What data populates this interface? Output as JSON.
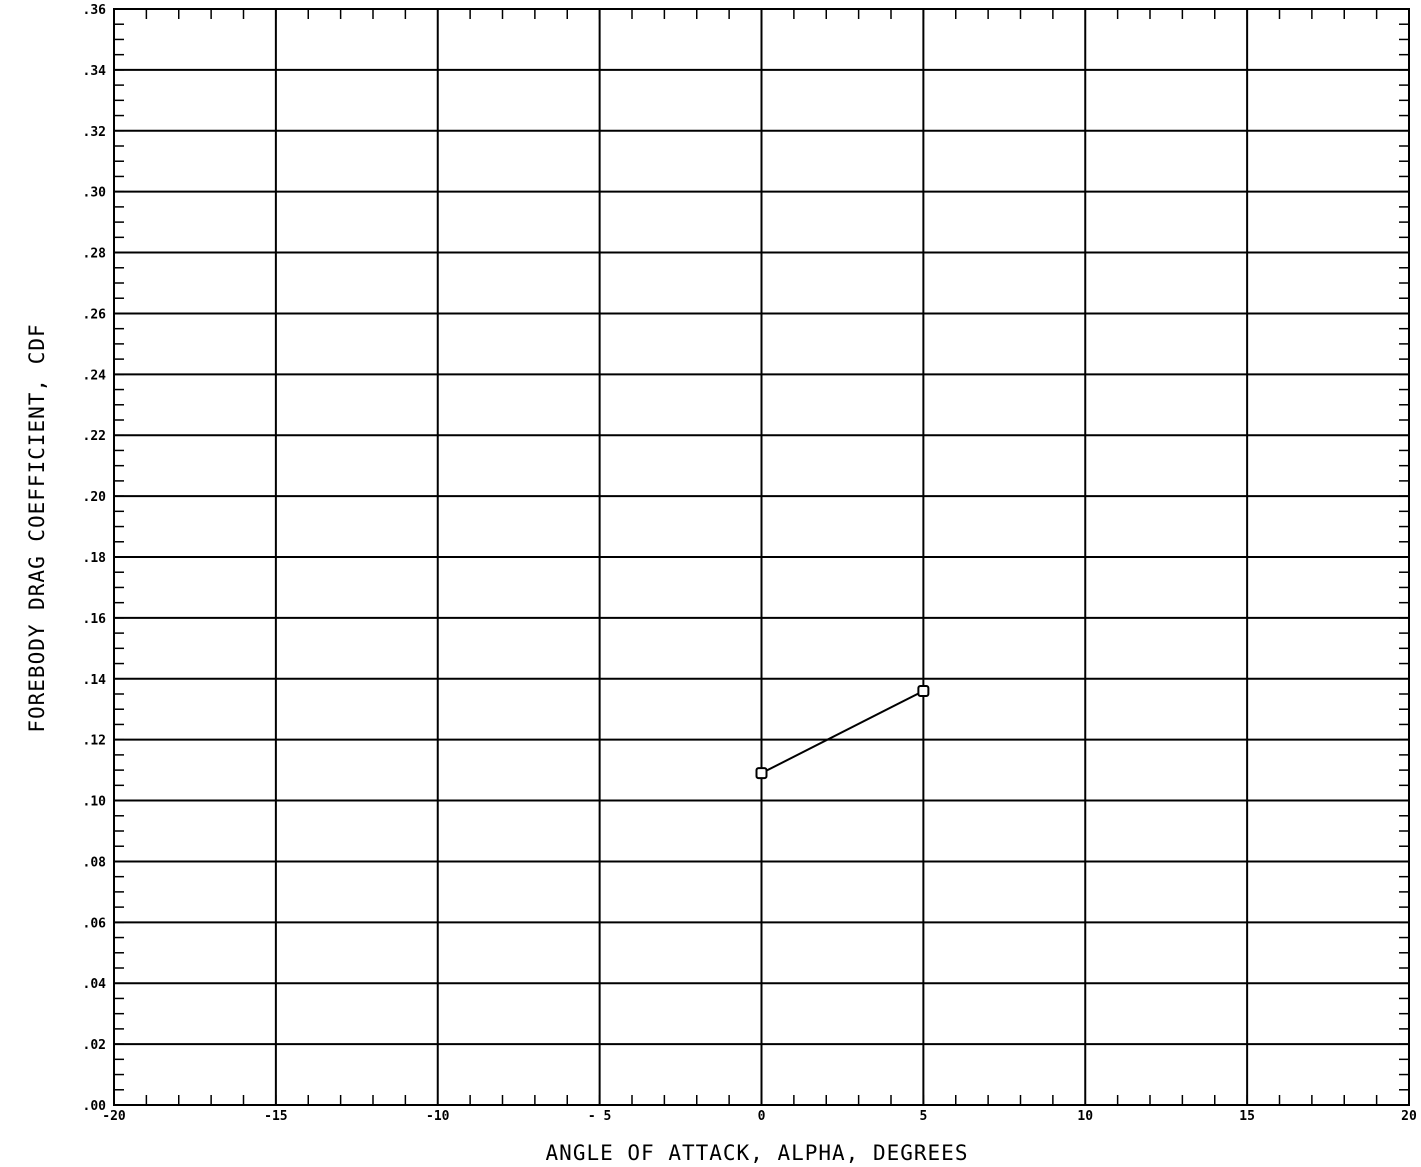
{
  "chart_data": {
    "type": "line",
    "title": "",
    "xlabel": "ANGLE OF ATTACK, ALPHA, DEGREES",
    "ylabel": "FOREBODY DRAG COEFFICIENT, CDF",
    "xlim": [
      -20,
      20
    ],
    "ylim": [
      0,
      0.36
    ],
    "x_ticks": [
      -20,
      -15,
      -10,
      -5,
      0,
      5,
      10,
      15,
      20
    ],
    "x_tick_labels": [
      "-20",
      "-15",
      "-10",
      "- 5",
      "0",
      "5",
      "10",
      "15",
      "20"
    ],
    "y_ticks": [
      0,
      0.02,
      0.04,
      0.06,
      0.08,
      0.1,
      0.12,
      0.14,
      0.16,
      0.18,
      0.2,
      0.22,
      0.24,
      0.26,
      0.28,
      0.3,
      0.32,
      0.34,
      0.36
    ],
    "y_tick_labels": [
      ".00",
      ".02",
      ".04",
      ".06",
      ".08",
      ".10",
      ".12",
      ".14",
      ".16",
      ".18",
      ".20",
      ".22",
      ".24",
      ".26",
      ".28",
      ".30",
      ".32",
      ".34",
      ".36"
    ],
    "grid": true,
    "series": [
      {
        "x": [
          0,
          5
        ],
        "y": [
          0.109,
          0.136
        ],
        "marker": "square",
        "color": "#000000"
      }
    ]
  }
}
